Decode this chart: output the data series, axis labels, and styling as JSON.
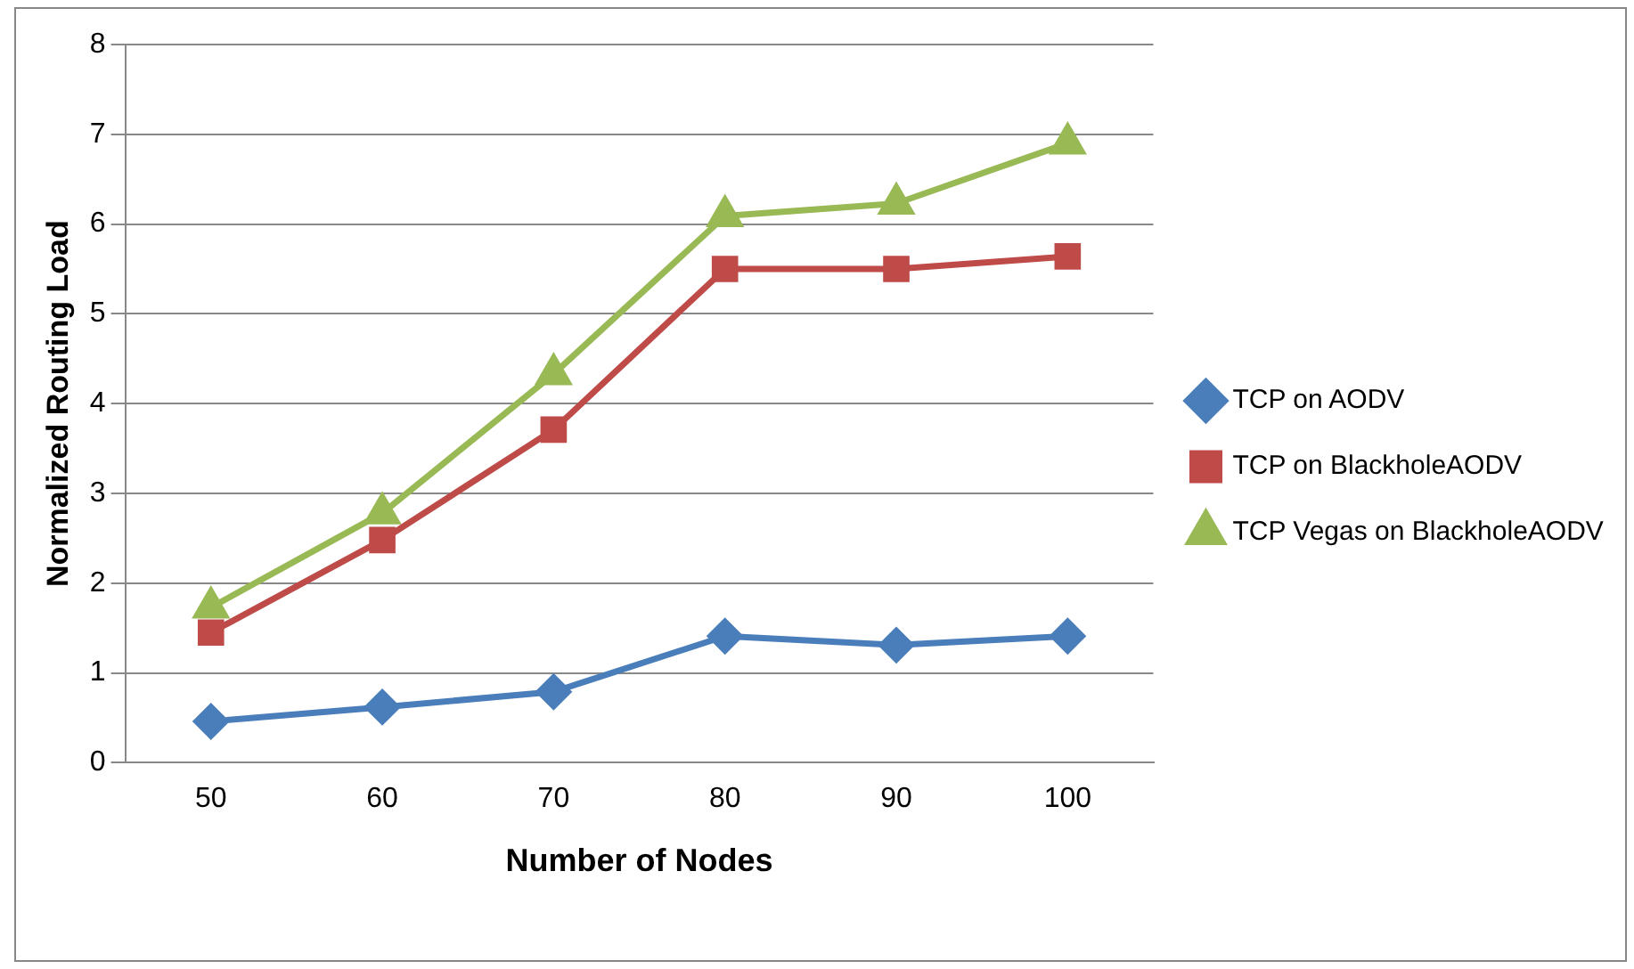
{
  "chart_data": {
    "type": "line",
    "xlabel": "Number of Nodes",
    "ylabel": "Normalized Routing Load",
    "categories": [
      "50",
      "60",
      "70",
      "80",
      "90",
      "100"
    ],
    "series": [
      {
        "name": "TCP on AODV",
        "color": "#4a7ebb",
        "marker": "diamond",
        "values": [
          0.46,
          0.62,
          0.79,
          1.41,
          1.31,
          1.41
        ]
      },
      {
        "name": "TCP on BlackholeAODV",
        "color": "#be4b48",
        "marker": "square",
        "values": [
          1.45,
          2.48,
          3.71,
          5.5,
          5.5,
          5.64
        ]
      },
      {
        "name": "TCP Vegas on BlackholeAODV",
        "color": "#98b954",
        "marker": "triangle",
        "values": [
          1.73,
          2.78,
          4.33,
          6.09,
          6.23,
          6.9
        ]
      }
    ],
    "ylim": [
      0,
      8
    ],
    "yticks": [
      0,
      1,
      2,
      3,
      4,
      5,
      6,
      7,
      8
    ],
    "grid": "y",
    "legend": "right"
  }
}
